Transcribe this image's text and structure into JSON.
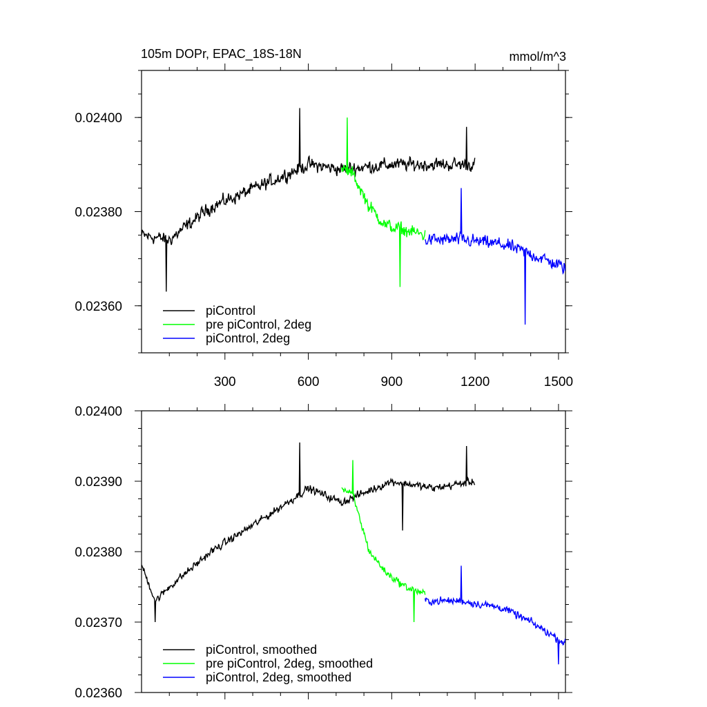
{
  "chart_data": [
    {
      "type": "line",
      "title": "105m DOPr, EPAC_18S-18N",
      "units": "mmol/m^3",
      "xlabel": "",
      "ylabel": "",
      "xlim": [
        0,
        1525
      ],
      "ylim": [
        0.0235,
        0.0241
      ],
      "x_ticks": [
        300,
        600,
        900,
        1200,
        1500
      ],
      "x_tick_labels": [
        "300",
        "600",
        "900",
        "1200",
        "1500"
      ],
      "y_ticks": [
        0.0236,
        0.0238,
        0.024
      ],
      "y_tick_labels": [
        "0.02360",
        "0.02380",
        "0.02400"
      ],
      "grid": false,
      "legend_position": "bottom-left",
      "series": [
        {
          "name": "piControl",
          "color": "#000000",
          "x_range": [
            1,
            1200
          ],
          "noise": 6.5e-06,
          "trend": [
            [
              1,
              0.02375
            ],
            [
              100,
              0.02374
            ],
            [
              250,
              0.02381
            ],
            [
              450,
              0.02386
            ],
            [
              600,
              0.0239
            ],
            [
              720,
              0.02389
            ],
            [
              900,
              0.0239
            ],
            [
              1050,
              0.0239
            ],
            [
              1200,
              0.0239
            ]
          ],
          "extremes": [
            [
              570,
              0.02402
            ],
            [
              90,
              0.02363
            ],
            [
              1170,
              0.02398
            ]
          ]
        },
        {
          "name": "pre piControl, 2deg",
          "color": "#00ff00",
          "x_range": [
            720,
            1020
          ],
          "noise": 6.5e-06,
          "trend": [
            [
              720,
              0.02389
            ],
            [
              760,
              0.02388
            ],
            [
              820,
              0.02381
            ],
            [
              880,
              0.02377
            ],
            [
              950,
              0.02376
            ],
            [
              1020,
              0.02375
            ]
          ],
          "extremes": [
            [
              740,
              0.024
            ],
            [
              930,
              0.02364
            ]
          ]
        },
        {
          "name": "piControl, 2deg",
          "color": "#0000ff",
          "x_range": [
            1020,
            1525
          ],
          "noise": 6.5e-06,
          "trend": [
            [
              1020,
              0.02374
            ],
            [
              1150,
              0.02374
            ],
            [
              1300,
              0.02373
            ],
            [
              1400,
              0.02371
            ],
            [
              1525,
              0.02368
            ]
          ],
          "extremes": [
            [
              1380,
              0.02356
            ],
            [
              1150,
              0.02385
            ]
          ]
        }
      ]
    },
    {
      "type": "line",
      "title": "",
      "xlabel": "",
      "ylabel": "",
      "xlim": [
        0,
        1525
      ],
      "ylim": [
        0.0236,
        0.024
      ],
      "x_ticks": [
        300,
        600,
        900,
        1200,
        1500
      ],
      "x_tick_labels": [],
      "y_ticks": [
        0.0236,
        0.0237,
        0.0238,
        0.0239,
        0.024
      ],
      "y_tick_labels": [
        "0.02360",
        "0.02370",
        "0.02380",
        "0.02390",
        "0.02400"
      ],
      "grid": false,
      "legend_position": "bottom-left",
      "series": [
        {
          "name": "piControl, smoothed",
          "color": "#000000",
          "x_range": [
            1,
            1200
          ],
          "noise": 2.5e-06,
          "trend": [
            [
              1,
              0.02378
            ],
            [
              50,
              0.02373
            ],
            [
              100,
              0.02375
            ],
            [
              250,
              0.0238
            ],
            [
              450,
              0.02385
            ],
            [
              600,
              0.02389
            ],
            [
              720,
              0.02387
            ],
            [
              900,
              0.0239
            ],
            [
              1050,
              0.02389
            ],
            [
              1200,
              0.0239
            ]
          ],
          "extremes": [
            [
              570,
              0.023955
            ],
            [
              1170,
              0.02395
            ],
            [
              940,
              0.02383
            ],
            [
              50,
              0.0237
            ]
          ]
        },
        {
          "name": "pre piControl, 2deg, smoothed",
          "color": "#00ff00",
          "x_range": [
            720,
            1020
          ],
          "noise": 2.5e-06,
          "trend": [
            [
              720,
              0.02389
            ],
            [
              760,
              0.02388
            ],
            [
              820,
              0.0238
            ],
            [
              880,
              0.02377
            ],
            [
              950,
              0.02375
            ],
            [
              1020,
              0.02374
            ]
          ],
          "extremes": [
            [
              760,
              0.02393
            ],
            [
              980,
              0.0237
            ]
          ]
        },
        {
          "name": "piControl, 2deg, smoothed",
          "color": "#0000ff",
          "x_range": [
            1020,
            1525
          ],
          "noise": 2.5e-06,
          "trend": [
            [
              1020,
              0.02373
            ],
            [
              1150,
              0.02373
            ],
            [
              1300,
              0.02372
            ],
            [
              1400,
              0.0237
            ],
            [
              1525,
              0.02367
            ]
          ],
          "extremes": [
            [
              1500,
              0.02364
            ],
            [
              1150,
              0.02378
            ]
          ]
        }
      ]
    }
  ]
}
